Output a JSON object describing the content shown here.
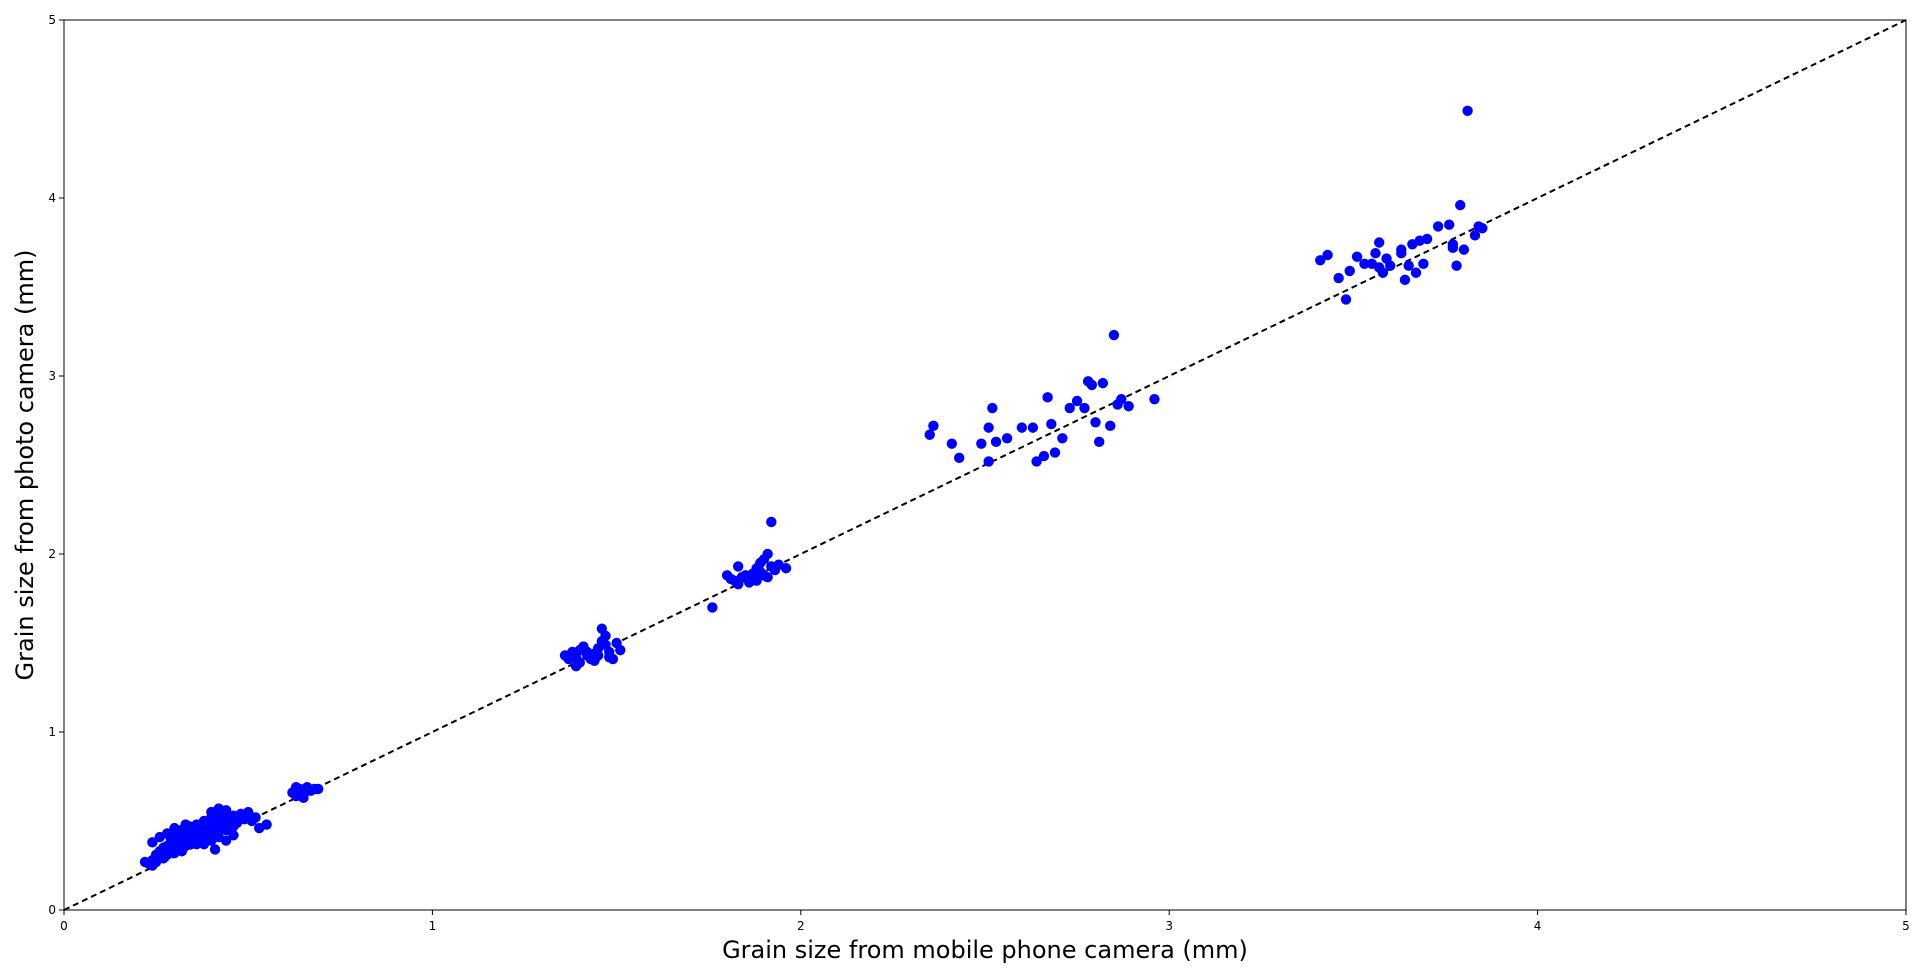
{
  "chart_data": {
    "type": "scatter",
    "title": "",
    "xlabel": "Grain size from mobile phone camera (mm)",
    "ylabel": "Grain size from photo camera (mm)",
    "xlim": [
      0,
      5
    ],
    "ylim": [
      0,
      5
    ],
    "xticks": [
      "0",
      "1",
      "2",
      "3",
      "4",
      "5"
    ],
    "yticks": [
      "0",
      "1",
      "2",
      "3",
      "4",
      "5"
    ],
    "grid": false,
    "legend": "none",
    "marker_color": "#0000ff",
    "reference_line": {
      "style": "dashed",
      "color": "#000000",
      "from": [
        0,
        0
      ],
      "to": [
        5,
        5
      ]
    },
    "points": [
      [
        0.23,
        0.26
      ],
      [
        0.24,
        0.28
      ],
      [
        0.25,
        0.27
      ],
      [
        0.26,
        0.3
      ],
      [
        0.27,
        0.29
      ],
      [
        0.28,
        0.31
      ],
      [
        0.29,
        0.33
      ],
      [
        0.3,
        0.32
      ],
      [
        0.31,
        0.34
      ],
      [
        0.32,
        0.33
      ],
      [
        0.33,
        0.36
      ],
      [
        0.34,
        0.37
      ],
      [
        0.35,
        0.38
      ],
      [
        0.36,
        0.37
      ],
      [
        0.37,
        0.39
      ],
      [
        0.38,
        0.4
      ],
      [
        0.39,
        0.42
      ],
      [
        0.4,
        0.41
      ],
      [
        0.41,
        0.43
      ],
      [
        0.42,
        0.44
      ],
      [
        0.43,
        0.46
      ],
      [
        0.44,
        0.45
      ],
      [
        0.45,
        0.48
      ],
      [
        0.46,
        0.47
      ],
      [
        0.24,
        0.38
      ],
      [
        0.26,
        0.41
      ],
      [
        0.28,
        0.43
      ],
      [
        0.3,
        0.44
      ],
      [
        0.32,
        0.45
      ],
      [
        0.34,
        0.47
      ],
      [
        0.36,
        0.48
      ],
      [
        0.38,
        0.5
      ],
      [
        0.4,
        0.52
      ],
      [
        0.42,
        0.54
      ],
      [
        0.44,
        0.55
      ],
      [
        0.46,
        0.53
      ],
      [
        0.48,
        0.54
      ],
      [
        0.5,
        0.55
      ],
      [
        0.52,
        0.52
      ],
      [
        0.27,
        0.35
      ],
      [
        0.29,
        0.37
      ],
      [
        0.31,
        0.39
      ],
      [
        0.33,
        0.42
      ],
      [
        0.35,
        0.44
      ],
      [
        0.37,
        0.46
      ],
      [
        0.39,
        0.48
      ],
      [
        0.41,
        0.5
      ],
      [
        0.43,
        0.51
      ],
      [
        0.45,
        0.5
      ],
      [
        0.47,
        0.49
      ],
      [
        0.49,
        0.51
      ],
      [
        0.51,
        0.5
      ],
      [
        0.26,
        0.33
      ],
      [
        0.28,
        0.36
      ],
      [
        0.3,
        0.38
      ],
      [
        0.32,
        0.4
      ],
      [
        0.34,
        0.39
      ],
      [
        0.36,
        0.41
      ],
      [
        0.38,
        0.43
      ],
      [
        0.4,
        0.45
      ],
      [
        0.42,
        0.47
      ],
      [
        0.44,
        0.49
      ],
      [
        0.46,
        0.51
      ],
      [
        0.33,
        0.48
      ],
      [
        0.35,
        0.45
      ],
      [
        0.37,
        0.47
      ],
      [
        0.39,
        0.46
      ],
      [
        0.41,
        0.49
      ],
      [
        0.43,
        0.52
      ],
      [
        0.4,
        0.55
      ],
      [
        0.42,
        0.57
      ],
      [
        0.44,
        0.56
      ],
      [
        0.25,
        0.31
      ],
      [
        0.27,
        0.33
      ],
      [
        0.29,
        0.35
      ],
      [
        0.31,
        0.36
      ],
      [
        0.33,
        0.38
      ],
      [
        0.35,
        0.4
      ],
      [
        0.37,
        0.42
      ],
      [
        0.39,
        0.44
      ],
      [
        0.41,
        0.34
      ],
      [
        0.44,
        0.39
      ],
      [
        0.46,
        0.42
      ],
      [
        0.53,
        0.46
      ],
      [
        0.55,
        0.48
      ],
      [
        0.3,
        0.46
      ],
      [
        0.31,
        0.41
      ],
      [
        0.36,
        0.39
      ],
      [
        0.38,
        0.37
      ],
      [
        0.34,
        0.42
      ],
      [
        0.4,
        0.39
      ],
      [
        0.42,
        0.41
      ],
      [
        0.24,
        0.25
      ],
      [
        0.22,
        0.27
      ],
      [
        0.35,
        0.43
      ],
      [
        0.29,
        0.4
      ],
      [
        0.63,
        0.64
      ],
      [
        0.64,
        0.68
      ],
      [
        0.65,
        0.66
      ],
      [
        0.66,
        0.69
      ],
      [
        0.67,
        0.67
      ],
      [
        0.68,
        0.68
      ],
      [
        0.69,
        0.68
      ],
      [
        0.63,
        0.69
      ],
      [
        0.64,
        0.65
      ],
      [
        0.65,
        0.63
      ],
      [
        0.66,
        0.67
      ],
      [
        0.62,
        0.66
      ],
      [
        1.36,
        1.43
      ],
      [
        1.37,
        1.41
      ],
      [
        1.38,
        1.45
      ],
      [
        1.39,
        1.37
      ],
      [
        1.4,
        1.46
      ],
      [
        1.41,
        1.48
      ],
      [
        1.42,
        1.43
      ],
      [
        1.43,
        1.41
      ],
      [
        1.44,
        1.44
      ],
      [
        1.45,
        1.47
      ],
      [
        1.46,
        1.51
      ],
      [
        1.47,
        1.49
      ],
      [
        1.48,
        1.42
      ],
      [
        1.46,
        1.58
      ],
      [
        1.47,
        1.54
      ],
      [
        1.49,
        1.41
      ],
      [
        1.5,
        1.5
      ],
      [
        1.51,
        1.46
      ],
      [
        1.45,
        1.43
      ],
      [
        1.44,
        1.4
      ],
      [
        1.42,
        1.45
      ],
      [
        1.4,
        1.39
      ],
      [
        1.39,
        1.42
      ],
      [
        1.48,
        1.45
      ],
      [
        1.76,
        1.7
      ],
      [
        1.8,
        1.88
      ],
      [
        1.81,
        1.86
      ],
      [
        1.82,
        1.85
      ],
      [
        1.83,
        1.83
      ],
      [
        1.84,
        1.87
      ],
      [
        1.85,
        1.88
      ],
      [
        1.86,
        1.86
      ],
      [
        1.87,
        1.89
      ],
      [
        1.88,
        1.92
      ],
      [
        1.89,
        1.95
      ],
      [
        1.9,
        1.97
      ],
      [
        1.91,
        2.0
      ],
      [
        1.92,
        1.93
      ],
      [
        1.93,
        1.91
      ],
      [
        1.94,
        1.94
      ],
      [
        1.96,
        1.92
      ],
      [
        1.92,
        2.18
      ],
      [
        1.9,
        1.88
      ],
      [
        1.88,
        1.85
      ],
      [
        1.86,
        1.84
      ],
      [
        1.83,
        1.93
      ],
      [
        1.89,
        1.9
      ],
      [
        1.91,
        1.87
      ],
      [
        2.35,
        2.67
      ],
      [
        2.36,
        2.72
      ],
      [
        2.41,
        2.62
      ],
      [
        2.43,
        2.54
      ],
      [
        2.49,
        2.62
      ],
      [
        2.51,
        2.71
      ],
      [
        2.52,
        2.82
      ],
      [
        2.51,
        2.52
      ],
      [
        2.53,
        2.63
      ],
      [
        2.56,
        2.65
      ],
      [
        2.6,
        2.71
      ],
      [
        2.63,
        2.71
      ],
      [
        2.64,
        2.52
      ],
      [
        2.66,
        2.55
      ],
      [
        2.67,
        2.88
      ],
      [
        2.68,
        2.73
      ],
      [
        2.69,
        2.57
      ],
      [
        2.71,
        2.65
      ],
      [
        2.73,
        2.82
      ],
      [
        2.75,
        2.86
      ],
      [
        2.77,
        2.82
      ],
      [
        2.78,
        2.97
      ],
      [
        2.79,
        2.95
      ],
      [
        2.8,
        2.74
      ],
      [
        2.81,
        2.63
      ],
      [
        2.82,
        2.96
      ],
      [
        2.84,
        2.72
      ],
      [
        2.85,
        3.23
      ],
      [
        2.86,
        2.84
      ],
      [
        2.87,
        2.87
      ],
      [
        2.89,
        2.83
      ],
      [
        2.96,
        2.87
      ],
      [
        3.41,
        3.65
      ],
      [
        3.43,
        3.68
      ],
      [
        3.46,
        3.55
      ],
      [
        3.48,
        3.43
      ],
      [
        3.49,
        3.59
      ],
      [
        3.51,
        3.67
      ],
      [
        3.53,
        3.63
      ],
      [
        3.55,
        3.63
      ],
      [
        3.56,
        3.69
      ],
      [
        3.57,
        3.75
      ],
      [
        3.58,
        3.58
      ],
      [
        3.59,
        3.66
      ],
      [
        3.6,
        3.62
      ],
      [
        3.63,
        3.71
      ],
      [
        3.64,
        3.54
      ],
      [
        3.65,
        3.62
      ],
      [
        3.66,
        3.74
      ],
      [
        3.67,
        3.58
      ],
      [
        3.68,
        3.76
      ],
      [
        3.69,
        3.63
      ],
      [
        3.7,
        3.77
      ],
      [
        3.73,
        3.84
      ],
      [
        3.76,
        3.85
      ],
      [
        3.77,
        3.74
      ],
      [
        3.78,
        3.62
      ],
      [
        3.79,
        3.96
      ],
      [
        3.8,
        3.71
      ],
      [
        3.81,
        4.49
      ],
      [
        3.83,
        3.79
      ],
      [
        3.84,
        3.84
      ],
      [
        3.85,
        3.83
      ],
      [
        3.77,
        3.72
      ],
      [
        3.63,
        3.69
      ],
      [
        3.57,
        3.61
      ]
    ]
  }
}
